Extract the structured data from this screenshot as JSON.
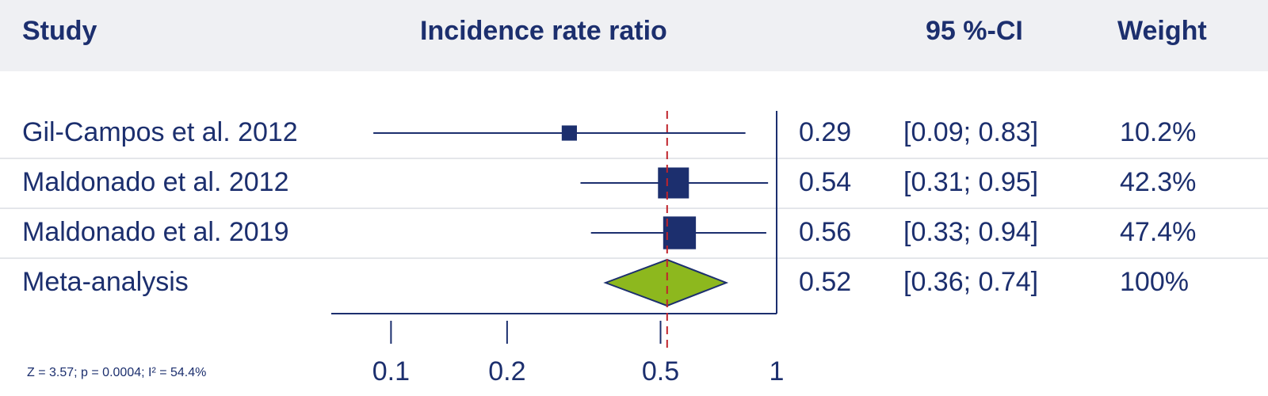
{
  "headers": {
    "study": "Study",
    "irr": "Incidence rate ratio",
    "ci": "95 %-CI",
    "weight": "Weight"
  },
  "rows": [
    {
      "study": "Gil-Campos et al. 2012",
      "estimate": "0.29",
      "ci": "[0.09; 0.83]",
      "weight": "10.2%"
    },
    {
      "study": "Maldonado et al. 2012",
      "estimate": "0.54",
      "ci": "[0.31; 0.95]",
      "weight": "42.3%"
    },
    {
      "study": "Maldonado et al. 2019",
      "estimate": "0.56",
      "ci": "[0.33; 0.94]",
      "weight": "47.4%"
    },
    {
      "study": "Meta-analysis",
      "estimate": "0.52",
      "ci": "[0.36; 0.74]",
      "weight": "100%"
    }
  ],
  "footnote": "Z = 3.57; p = 0.0004; I² = 54.4%",
  "colors": {
    "primary": "#1c2f6e",
    "summary_fill": "#8db81e",
    "reference_line": "#c0232b",
    "header_bg": "#eff0f3"
  },
  "chart_data": {
    "type": "forest",
    "scale": "log",
    "xlim": [
      0.07,
      1
    ],
    "reference_value": 0.52,
    "xticks": [
      0.1,
      0.2,
      0.5,
      1
    ],
    "xtick_labels": [
      "0.1",
      "0.2",
      "0.5",
      "1"
    ],
    "studies": [
      {
        "study": "Gil-Campos et al. 2012",
        "estimate": 0.29,
        "lower": 0.09,
        "upper": 0.83,
        "weight": 10.2
      },
      {
        "study": "Maldonado et al. 2012",
        "estimate": 0.54,
        "lower": 0.31,
        "upper": 0.95,
        "weight": 42.3
      },
      {
        "study": "Maldonado et al. 2019",
        "estimate": 0.56,
        "lower": 0.33,
        "upper": 0.94,
        "weight": 47.4
      }
    ],
    "summary": {
      "study": "Meta-analysis",
      "estimate": 0.52,
      "lower": 0.36,
      "upper": 0.74,
      "weight": 100
    }
  }
}
